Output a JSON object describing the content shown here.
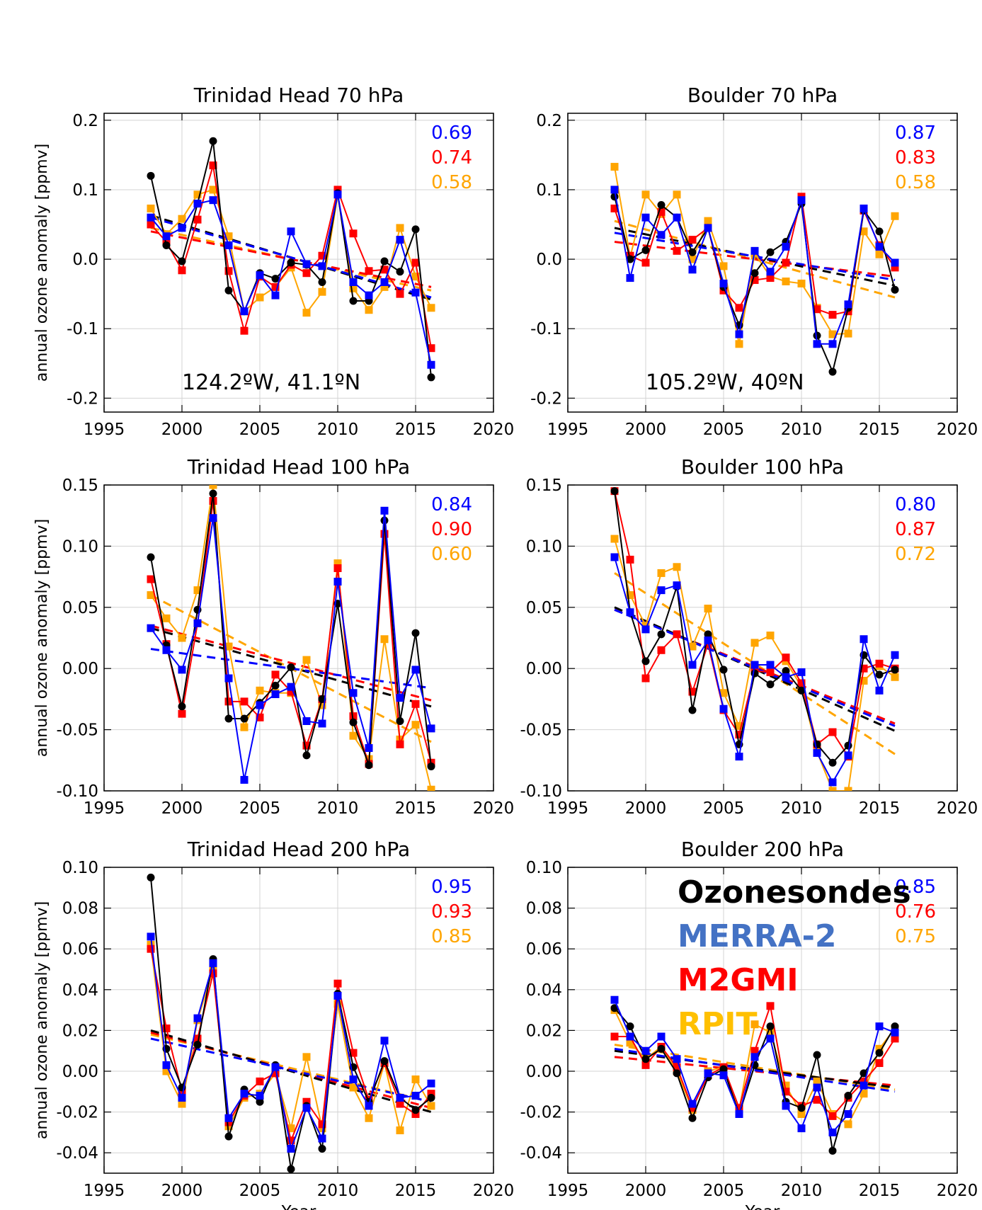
{
  "colors": {
    "sondes": "#000000",
    "merra2": "#0000ff",
    "m2gmi": "#ff0000",
    "rpit": "#ffa500",
    "legend_merra2": "#4472c4",
    "legend_m2gmi": "#ff0000",
    "legend_rpit": "#ffc000",
    "grid": "#d3d3d3"
  },
  "common": {
    "ylabel": "annual ozone anomaly [ppmv]",
    "xlabel": "Year",
    "xlim": [
      1995,
      2020
    ],
    "xticks": [
      1995,
      2000,
      2005,
      2010,
      2015,
      2020
    ]
  },
  "legend": {
    "sondes": "Ozonesondes",
    "merra2": "MERRA-2",
    "m2gmi": "M2GMI",
    "rpit": "RPIT"
  },
  "chart_data": [
    {
      "type": "line",
      "title": "Trinidad Head  70 hPa",
      "location": "124.2ºW, 41.1ºN",
      "ylim": [
        -0.22,
        0.21
      ],
      "yticks": [
        "0.2",
        "0.1",
        "0.0",
        "-0.1",
        "-0.2"
      ],
      "ytick_values": [
        0.2,
        0.1,
        0.0,
        -0.1,
        -0.2
      ],
      "correlations": [
        "0.69",
        "0.74",
        "0.58"
      ],
      "x": [
        1998,
        1999,
        2000,
        2001,
        2002,
        2003,
        2004,
        2005,
        2006,
        2007,
        2008,
        2009,
        2010,
        2011,
        2012,
        2013,
        2014,
        2015,
        2016
      ],
      "series": [
        {
          "id": "sondes",
          "values": [
            0.12,
            0.02,
            -0.003,
            0.08,
            0.17,
            -0.045,
            -0.075,
            -0.02,
            -0.028,
            -0.005,
            -0.008,
            -0.033,
            0.095,
            -0.06,
            -0.06,
            -0.003,
            -0.018,
            0.043,
            -0.17
          ],
          "trend": [
            0.063,
            -0.058
          ]
        },
        {
          "id": "merra2",
          "values": [
            0.06,
            0.033,
            0.045,
            0.08,
            0.085,
            0.02,
            -0.075,
            -0.023,
            -0.052,
            0.04,
            -0.007,
            -0.01,
            0.093,
            -0.033,
            -0.052,
            -0.033,
            0.028,
            -0.048,
            -0.152
          ],
          "trend": [
            0.06,
            -0.055
          ]
        },
        {
          "id": "m2gmi",
          "values": [
            0.05,
            0.025,
            -0.016,
            0.057,
            0.135,
            -0.017,
            -0.103,
            -0.025,
            -0.04,
            -0.008,
            -0.02,
            0.005,
            0.1,
            0.037,
            -0.017,
            -0.015,
            -0.05,
            -0.005,
            -0.128
          ],
          "trend": [
            0.04,
            -0.04
          ]
        },
        {
          "id": "rpit",
          "values": [
            0.073,
            0.036,
            0.058,
            0.093,
            0.1,
            0.033,
            -0.075,
            -0.055,
            -0.04,
            -0.012,
            -0.077,
            -0.047,
            0.093,
            -0.042,
            -0.073,
            -0.04,
            0.045,
            -0.025,
            -0.07
          ],
          "trend": [
            0.045,
            -0.045
          ]
        }
      ]
    },
    {
      "type": "line",
      "title": "Boulder  70 hPa",
      "location": "105.2ºW, 40ºN",
      "ylim": [
        -0.22,
        0.21
      ],
      "yticks": [
        "0.2",
        "0.1",
        "0.0",
        "-0.1",
        "-0.2"
      ],
      "ytick_values": [
        0.2,
        0.1,
        0.0,
        -0.1,
        -0.2
      ],
      "correlations": [
        "0.87",
        "0.83",
        "0.58"
      ],
      "x": [
        1998,
        1999,
        2000,
        2001,
        2002,
        2003,
        2004,
        2005,
        2006,
        2007,
        2008,
        2009,
        2010,
        2011,
        2012,
        2013,
        2014,
        2015,
        2016
      ],
      "series": [
        {
          "id": "sondes",
          "values": [
            0.09,
            0.0,
            0.013,
            0.078,
            0.06,
            0.01,
            0.045,
            -0.04,
            -0.095,
            -0.02,
            0.01,
            0.025,
            0.08,
            -0.11,
            -0.162,
            -0.07,
            0.07,
            0.04,
            -0.044
          ],
          "trend": [
            0.045,
            -0.038
          ]
        },
        {
          "id": "merra2",
          "values": [
            0.1,
            -0.027,
            0.06,
            0.035,
            0.06,
            -0.015,
            0.045,
            -0.035,
            -0.108,
            0.012,
            -0.018,
            0.018,
            0.085,
            -0.122,
            -0.122,
            -0.065,
            0.073,
            0.018,
            -0.005
          ],
          "trend": [
            0.038,
            -0.03
          ]
        },
        {
          "id": "m2gmi",
          "values": [
            0.073,
            0.005,
            -0.005,
            0.068,
            0.012,
            0.028,
            0.045,
            -0.045,
            -0.07,
            -0.03,
            -0.027,
            -0.005,
            0.09,
            -0.072,
            -0.08,
            -0.075,
            0.07,
            0.02,
            -0.012
          ],
          "trend": [
            0.025,
            -0.025
          ]
        },
        {
          "id": "rpit",
          "values": [
            0.133,
            0.003,
            0.093,
            0.065,
            0.093,
            0.0,
            0.055,
            -0.01,
            -0.122,
            0.008,
            -0.025,
            -0.032,
            -0.035,
            -0.07,
            -0.108,
            -0.107,
            0.04,
            0.007,
            0.062
          ],
          "trend": [
            0.055,
            -0.055
          ]
        }
      ]
    },
    {
      "type": "line",
      "title": "Trinidad Head 100 hPa",
      "location": "",
      "ylim": [
        -0.1,
        0.15
      ],
      "yticks": [
        "0.15",
        "0.10",
        "0.05",
        "0.00",
        "-0.05",
        "-0.10"
      ],
      "ytick_values": [
        0.15,
        0.1,
        0.05,
        0.0,
        -0.05,
        -0.1
      ],
      "correlations": [
        "0.84",
        "0.90",
        "0.60"
      ],
      "x": [
        1998,
        1999,
        2000,
        2001,
        2002,
        2003,
        2004,
        2005,
        2006,
        2007,
        2008,
        2009,
        2010,
        2011,
        2012,
        2013,
        2014,
        2015,
        2016
      ],
      "series": [
        {
          "id": "sondes",
          "values": [
            0.091,
            0.019,
            -0.031,
            0.048,
            0.143,
            -0.041,
            -0.041,
            -0.028,
            -0.014,
            0.001,
            -0.071,
            -0.025,
            0.053,
            -0.044,
            -0.079,
            0.121,
            -0.043,
            0.029,
            -0.08
          ],
          "trend": [
            0.033,
            -0.031
          ]
        },
        {
          "id": "merra2",
          "values": [
            0.033,
            0.015,
            -0.001,
            0.037,
            0.123,
            -0.008,
            -0.091,
            -0.03,
            -0.021,
            -0.015,
            -0.043,
            -0.045,
            0.071,
            -0.02,
            -0.065,
            0.129,
            -0.024,
            -0.001,
            -0.049
          ],
          "trend": [
            0.016,
            -0.016
          ]
        },
        {
          "id": "m2gmi",
          "values": [
            0.073,
            0.02,
            -0.037,
            0.037,
            0.137,
            -0.027,
            -0.027,
            -0.04,
            -0.005,
            -0.019,
            -0.063,
            -0.025,
            0.082,
            -0.039,
            -0.078,
            0.11,
            -0.062,
            -0.029,
            -0.077
          ],
          "trend": [
            0.035,
            -0.026
          ]
        },
        {
          "id": "rpit",
          "values": [
            0.06,
            0.041,
            0.025,
            0.064,
            0.15,
            0.018,
            -0.048,
            -0.018,
            -0.02,
            -0.02,
            0.007,
            -0.03,
            0.086,
            -0.055,
            -0.074,
            0.024,
            -0.058,
            -0.046,
            -0.099
          ],
          "trend": [
            0.06,
            -0.06
          ]
        }
      ]
    },
    {
      "type": "line",
      "title": "Boulder 100 hPa",
      "location": "",
      "ylim": [
        -0.1,
        0.15
      ],
      "yticks": [
        "0.15",
        "0.10",
        "0.05",
        "0.00",
        "-0.05",
        "-0.10"
      ],
      "ytick_values": [
        0.15,
        0.1,
        0.05,
        0.0,
        -0.05,
        -0.1
      ],
      "correlations": [
        "0.80",
        "0.87",
        "0.72"
      ],
      "x": [
        1998,
        1999,
        2000,
        2001,
        2002,
        2003,
        2004,
        2005,
        2006,
        2007,
        2008,
        2009,
        2010,
        2011,
        2012,
        2013,
        2014,
        2015,
        2016
      ],
      "series": [
        {
          "id": "sondes",
          "values": [
            0.145,
            0.046,
            0.006,
            0.028,
            0.067,
            -0.034,
            0.028,
            -0.001,
            -0.062,
            -0.004,
            -0.013,
            -0.002,
            -0.018,
            -0.062,
            -0.077,
            -0.063,
            0.011,
            -0.005,
            -0.001
          ],
          "trend": [
            0.05,
            -0.051
          ]
        },
        {
          "id": "merra2",
          "values": [
            0.091,
            0.046,
            0.032,
            0.064,
            0.068,
            0.003,
            0.023,
            -0.033,
            -0.072,
            0.003,
            0.003,
            -0.007,
            -0.003,
            -0.069,
            -0.093,
            -0.071,
            0.024,
            -0.018,
            0.011
          ],
          "trend": [
            0.048,
            -0.047
          ]
        },
        {
          "id": "m2gmi",
          "values": [
            0.145,
            0.089,
            -0.008,
            0.015,
            0.028,
            -0.019,
            0.02,
            -0.034,
            -0.054,
            -0.002,
            -0.003,
            0.009,
            -0.012,
            -0.062,
            -0.052,
            -0.072,
            0.0,
            0.004,
            0.0
          ],
          "trend": [
            0.048,
            -0.045
          ]
        },
        {
          "id": "rpit",
          "values": [
            0.106,
            0.06,
            0.035,
            0.078,
            0.083,
            0.018,
            0.049,
            -0.02,
            -0.047,
            0.021,
            0.027,
            0.006,
            -0.015,
            -0.068,
            -0.1,
            -0.1,
            -0.01,
            0.002,
            -0.007
          ],
          "trend": [
            0.078,
            -0.07
          ]
        }
      ]
    },
    {
      "type": "line",
      "title": "Trinidad Head 200 hPa",
      "location": "",
      "ylim": [
        -0.05,
        0.1
      ],
      "yticks": [
        "0.10",
        "0.08",
        "0.06",
        "0.04",
        "0.02",
        "0.00",
        "-0.02",
        "-0.04"
      ],
      "ytick_values": [
        0.1,
        0.08,
        0.06,
        0.04,
        0.02,
        0.0,
        -0.02,
        -0.04
      ],
      "correlations": [
        "0.95",
        "0.93",
        "0.85"
      ],
      "x": [
        1998,
        1999,
        2000,
        2001,
        2002,
        2003,
        2004,
        2005,
        2006,
        2007,
        2008,
        2009,
        2010,
        2011,
        2012,
        2013,
        2014,
        2015,
        2016
      ],
      "series": [
        {
          "id": "sondes",
          "values": [
            0.095,
            0.011,
            -0.008,
            0.013,
            0.055,
            -0.032,
            -0.009,
            -0.015,
            0.003,
            -0.048,
            -0.017,
            -0.038,
            0.038,
            0.002,
            -0.015,
            0.005,
            -0.013,
            -0.019,
            -0.013
          ],
          "trend": [
            0.02,
            -0.02
          ]
        },
        {
          "id": "merra2",
          "values": [
            0.066,
            0.003,
            -0.013,
            0.026,
            0.053,
            -0.023,
            -0.011,
            -0.012,
            0.002,
            -0.038,
            -0.018,
            -0.033,
            0.037,
            -0.004,
            -0.017,
            0.015,
            -0.013,
            -0.012,
            -0.006
          ],
          "trend": [
            0.016,
            -0.015
          ]
        },
        {
          "id": "m2gmi",
          "values": [
            0.06,
            0.021,
            -0.01,
            0.016,
            0.048,
            -0.025,
            -0.012,
            -0.005,
            -0.001,
            -0.034,
            -0.015,
            -0.026,
            0.043,
            0.009,
            -0.014,
            0.004,
            -0.016,
            -0.021,
            -0.011
          ],
          "trend": [
            0.019,
            -0.018
          ]
        },
        {
          "id": "rpit",
          "values": [
            0.062,
            0.0,
            -0.016,
            0.025,
            0.05,
            -0.027,
            -0.013,
            -0.011,
            -0.001,
            -0.028,
            0.007,
            -0.028,
            0.033,
            -0.008,
            -0.023,
            0.004,
            -0.029,
            -0.004,
            -0.017
          ],
          "trend": [
            0.018,
            -0.015
          ]
        }
      ]
    },
    {
      "type": "line",
      "title": "Boulder 200 hPa",
      "location": "",
      "ylim": [
        -0.05,
        0.1
      ],
      "yticks": [
        "0.10",
        "0.08",
        "0.06",
        "0.04",
        "0.02",
        "0.00",
        "-0.02",
        "-0.04"
      ],
      "ytick_values": [
        0.1,
        0.08,
        0.06,
        0.04,
        0.02,
        0.0,
        -0.02,
        -0.04
      ],
      "correlations": [
        "0.85",
        "0.76",
        "0.75"
      ],
      "show_legend": true,
      "x": [
        1998,
        1999,
        2000,
        2001,
        2002,
        2003,
        2004,
        2005,
        2006,
        2007,
        2008,
        2009,
        2010,
        2011,
        2012,
        2013,
        2014,
        2015,
        2016
      ],
      "series": [
        {
          "id": "sondes",
          "values": [
            0.031,
            0.022,
            0.006,
            0.011,
            -0.001,
            -0.023,
            -0.003,
            0.001,
            -0.021,
            0.003,
            0.022,
            -0.015,
            -0.018,
            0.008,
            -0.039,
            -0.012,
            -0.001,
            0.009,
            0.022
          ],
          "trend": [
            0.01,
            -0.008
          ]
        },
        {
          "id": "merra2",
          "values": [
            0.035,
            0.017,
            0.01,
            0.017,
            0.006,
            -0.016,
            -0.001,
            -0.002,
            -0.021,
            0.007,
            0.016,
            -0.017,
            -0.028,
            -0.008,
            -0.03,
            -0.021,
            -0.007,
            0.022,
            0.019
          ],
          "trend": [
            0.011,
            -0.01
          ]
        },
        {
          "id": "m2gmi",
          "values": [
            0.017,
            0.017,
            0.003,
            0.012,
            0.002,
            -0.018,
            -0.002,
            0.002,
            -0.018,
            0.01,
            0.032,
            -0.01,
            -0.017,
            -0.014,
            -0.022,
            -0.013,
            -0.005,
            0.004,
            0.016
          ],
          "trend": [
            0.007,
            -0.007
          ]
        },
        {
          "id": "rpit",
          "values": [
            0.03,
            0.014,
            0.006,
            0.012,
            0.0,
            -0.019,
            0.0,
            0.002,
            -0.019,
            0.023,
            0.019,
            -0.007,
            -0.021,
            -0.005,
            -0.021,
            -0.026,
            -0.011,
            0.011,
            0.021
          ],
          "trend": [
            0.013,
            -0.009
          ]
        }
      ]
    }
  ]
}
